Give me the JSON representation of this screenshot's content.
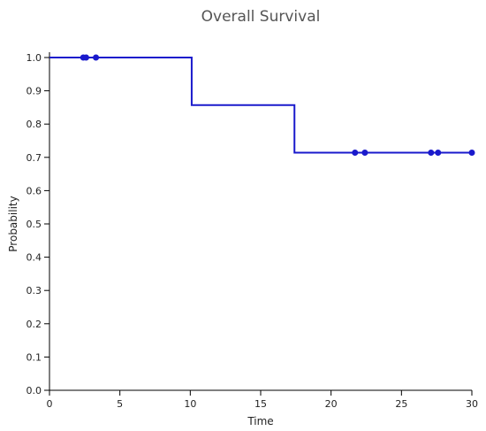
{
  "chart_data": {
    "type": "line",
    "title": "Overall Survival",
    "xlabel": "Time",
    "ylabel": "Probability",
    "xlim": [
      0,
      30
    ],
    "ylim": [
      0,
      1.0
    ],
    "xticks": [
      "0",
      "5",
      "10",
      "15",
      "20",
      "25",
      "30"
    ],
    "yticks": [
      "0.0",
      "0.1",
      "0.2",
      "0.3",
      "0.4",
      "0.5",
      "0.6",
      "0.7",
      "0.8",
      "0.9",
      "1.0"
    ],
    "grid": false,
    "series_color": "#1a1acc",
    "step_curve": [
      {
        "x": 0,
        "y": 1.0
      },
      {
        "x": 10.1,
        "y": 0.857
      },
      {
        "x": 17.4,
        "y": 0.714
      },
      {
        "x": 30,
        "y": 0.714
      }
    ],
    "censored_points": [
      {
        "x": 2.4,
        "y": 1.0
      },
      {
        "x": 2.6,
        "y": 1.0
      },
      {
        "x": 3.3,
        "y": 1.0
      },
      {
        "x": 21.7,
        "y": 0.714
      },
      {
        "x": 22.4,
        "y": 0.714
      },
      {
        "x": 27.1,
        "y": 0.714
      },
      {
        "x": 27.6,
        "y": 0.714
      },
      {
        "x": 30.0,
        "y": 0.714
      }
    ]
  }
}
